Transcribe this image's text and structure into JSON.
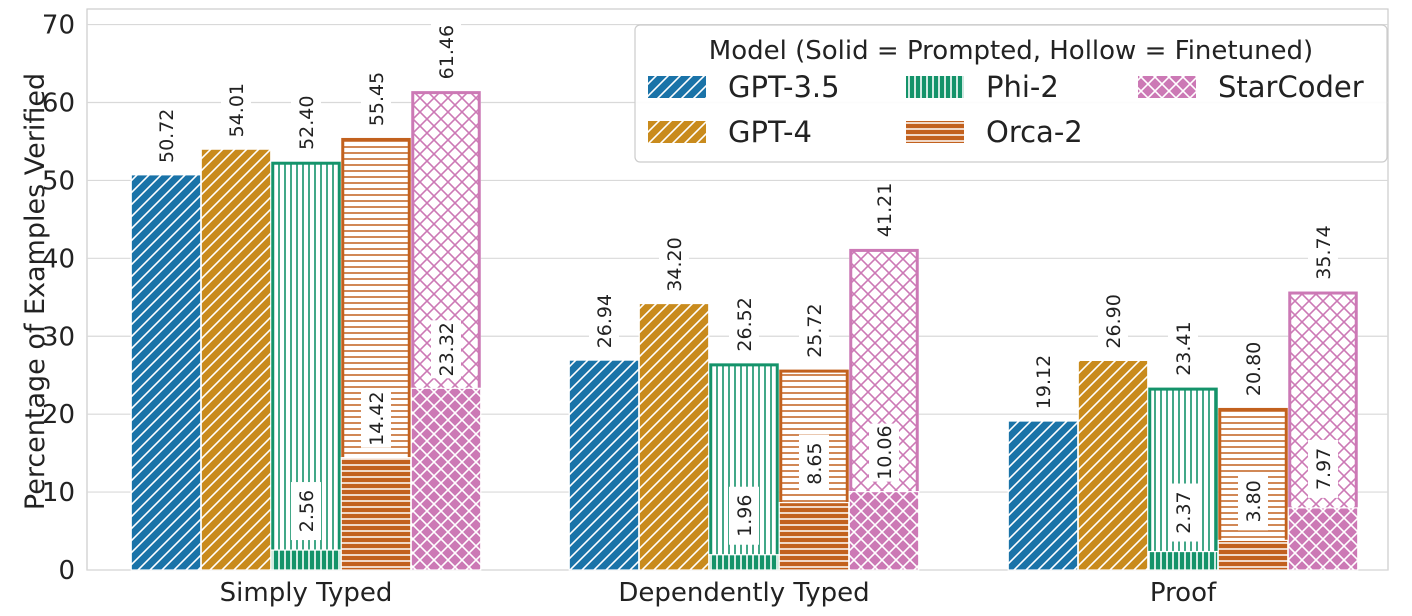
{
  "chart_data": {
    "type": "bar",
    "ylabel": "Percentage of Examples Verified",
    "xlabel": "",
    "ylim": [
      0,
      72
    ],
    "yticks": [
      0,
      10,
      20,
      30,
      40,
      50,
      60,
      70
    ],
    "grid": true,
    "legend_position": "top-right",
    "legend_title": "Model (Solid = Prompted, Hollow = Finetuned)",
    "categories": [
      "Simply Typed",
      "Dependently Typed",
      "Proof"
    ],
    "series": [
      {
        "name": "GPT-3.5",
        "color": "#1a73a8",
        "hatch": "diagonal",
        "prompted": [
          50.72,
          26.94,
          19.12
        ],
        "finetuned": [
          null,
          null,
          null
        ]
      },
      {
        "name": "GPT-4",
        "color": "#c98b1d",
        "hatch": "diagonal",
        "prompted": [
          54.01,
          34.2,
          26.9
        ],
        "finetuned": [
          null,
          null,
          null
        ]
      },
      {
        "name": "Phi-2",
        "color": "#14936a",
        "hatch": "vertical",
        "prompted": [
          2.56,
          1.96,
          2.37
        ],
        "finetuned": [
          52.4,
          26.52,
          23.41
        ]
      },
      {
        "name": "Orca-2",
        "color": "#c2611e",
        "hatch": "horizontal",
        "prompted": [
          14.42,
          8.65,
          3.8
        ],
        "finetuned": [
          55.45,
          25.72,
          20.8
        ]
      },
      {
        "name": "StarCoder",
        "color": "#cc79b5",
        "hatch": "cross",
        "prompted": [
          23.32,
          10.06,
          7.97
        ],
        "finetuned": [
          61.46,
          41.21,
          35.74
        ]
      }
    ],
    "data_labels": [
      [
        "50.72",
        "54.01",
        "52.40",
        "55.45",
        "61.46"
      ],
      [
        "26.94",
        "34.20",
        "26.52",
        "25.72",
        "41.21"
      ],
      [
        "19.12",
        "26.90",
        "23.41",
        "20.80",
        "35.74"
      ]
    ],
    "inner_labels": [
      [
        null,
        null,
        "2.56",
        "14.42",
        "23.32"
      ],
      [
        null,
        null,
        "1.96",
        "8.65",
        "10.06"
      ],
      [
        null,
        null,
        "2.37",
        "3.80",
        "7.97"
      ]
    ]
  }
}
